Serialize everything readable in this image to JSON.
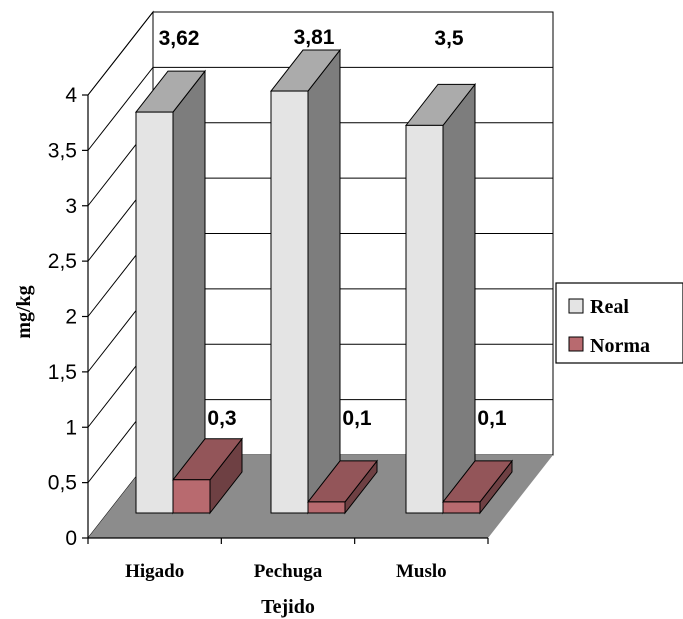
{
  "chart_data": {
    "type": "bar",
    "style": "3d-clustered-column",
    "categories": [
      "Higado",
      "Pechuga",
      "Muslo"
    ],
    "series": [
      {
        "name": "Real",
        "values": [
          3.62,
          3.81,
          3.5
        ],
        "labels": [
          "3,62",
          "3,81",
          "3,5"
        ],
        "color": "#e4e4e4"
      },
      {
        "name": "Norma",
        "values": [
          0.3,
          0.1,
          0.1
        ],
        "labels": [
          "0,3",
          "0,1",
          "0,1"
        ],
        "color": "#b86a6f"
      }
    ],
    "xlabel": "Tejido",
    "ylabel": "mg/kg",
    "ylim": [
      0,
      4
    ],
    "yticks": [
      0,
      0.5,
      1,
      1.5,
      2,
      2.5,
      3,
      3.5,
      4
    ],
    "ytick_labels": [
      "0",
      "0,5",
      "1",
      "1,5",
      "2",
      "2,5",
      "3",
      "3,5",
      "4"
    ],
    "grid": true,
    "legend_position": "right",
    "floor_color": "#8c8c8c"
  }
}
